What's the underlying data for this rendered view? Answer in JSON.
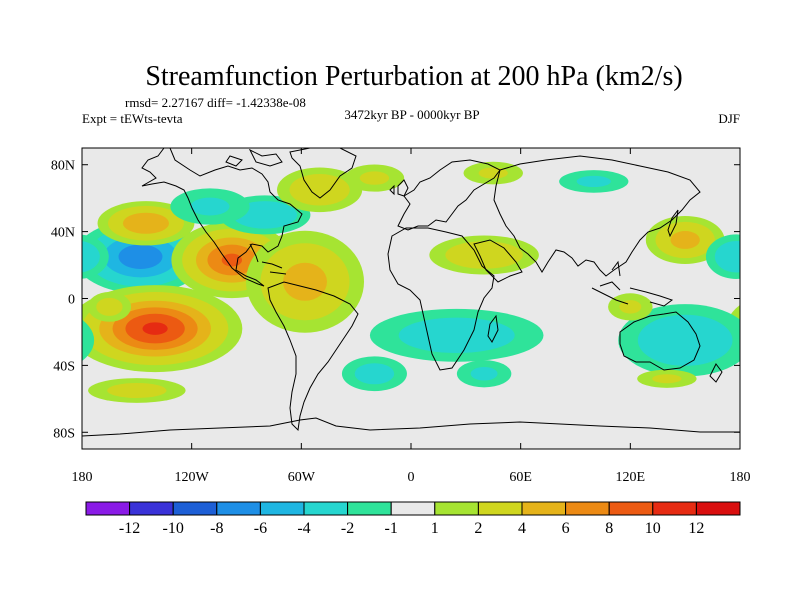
{
  "chart_data": {
    "type": "heatmap",
    "title": "Streamfunction Perturbation at 200 hPa (km2/s)",
    "stats_text": "rmsd= 2.27167 diff= -1.42338e-08",
    "experiment_text": "Expt = tEWts-tevta",
    "period_text": "3472kyr BP - 0000kyr BP",
    "season_text": "DJF",
    "map": "world coastlines, cylindrical equidistant",
    "xlim": [
      -180,
      180
    ],
    "ylim": [
      -90,
      90
    ],
    "x_ticks": [
      {
        "value": -180,
        "label": "180"
      },
      {
        "value": -120,
        "label": "120W"
      },
      {
        "value": -60,
        "label": "60W"
      },
      {
        "value": 0,
        "label": "0"
      },
      {
        "value": 60,
        "label": "60E"
      },
      {
        "value": 120,
        "label": "120E"
      },
      {
        "value": 180,
        "label": "180"
      }
    ],
    "y_ticks": [
      {
        "value": 80,
        "label": "80N"
      },
      {
        "value": 40,
        "label": "40N"
      },
      {
        "value": 0,
        "label": "0"
      },
      {
        "value": -40,
        "label": "40S"
      },
      {
        "value": -80,
        "label": "80S"
      }
    ],
    "colorbar": {
      "levels": [
        -12,
        -10,
        -8,
        -6,
        -4,
        -2,
        -1,
        1,
        2,
        4,
        6,
        8,
        10,
        12
      ],
      "labels": [
        "-12",
        "-10",
        "-8",
        "-6",
        "-4",
        "-2",
        "-1",
        "1",
        "2",
        "4",
        "6",
        "8",
        "10",
        "12"
      ],
      "colors": [
        "#8a1be6",
        "#3a32d8",
        "#1d5fd6",
        "#1e8fe6",
        "#1fb6e2",
        "#26d6cf",
        "#2fe39a",
        "#e9e9e9",
        "#a6e432",
        "#cfd61f",
        "#e5b31a",
        "#ec8a14",
        "#ec5a12",
        "#e62b12",
        "#d90e0e"
      ]
    },
    "anomalies": [
      {
        "lon": -148,
        "lat": 25,
        "value": -7.5,
        "sx": 18,
        "sy": 11
      },
      {
        "lon": -145,
        "lat": 45,
        "value": 6.0,
        "sx": 14,
        "sy": 7
      },
      {
        "lon": -140,
        "lat": -18,
        "value": 10.5,
        "sx": 22,
        "sy": 12
      },
      {
        "lon": -98,
        "lat": 23,
        "value": 8.5,
        "sx": 16,
        "sy": 11
      },
      {
        "lon": -58,
        "lat": 10,
        "value": 5.0,
        "sx": 18,
        "sy": 17
      },
      {
        "lon": -80,
        "lat": 50,
        "value": -4.0,
        "sx": 15,
        "sy": 7
      },
      {
        "lon": -110,
        "lat": 55,
        "value": -2.5,
        "sx": 16,
        "sy": 8
      },
      {
        "lon": -50,
        "lat": 65,
        "value": 4.0,
        "sx": 14,
        "sy": 8
      },
      {
        "lon": -20,
        "lat": 72,
        "value": 2.5,
        "sx": 12,
        "sy": 6
      },
      {
        "lon": 40,
        "lat": 26,
        "value": 4.0,
        "sx": 18,
        "sy": 7
      },
      {
        "lon": 45,
        "lat": 75,
        "value": 2.5,
        "sx": 12,
        "sy": 5
      },
      {
        "lon": 25,
        "lat": -22,
        "value": -3.5,
        "sx": 30,
        "sy": 10
      },
      {
        "lon": -150,
        "lat": -55,
        "value": 3.0,
        "sx": 18,
        "sy": 5
      },
      {
        "lon": -20,
        "lat": -45,
        "value": -3.0,
        "sx": 12,
        "sy": 7
      },
      {
        "lon": 40,
        "lat": -45,
        "value": -2.5,
        "sx": 11,
        "sy": 6
      },
      {
        "lon": 150,
        "lat": 35,
        "value": 5.0,
        "sx": 12,
        "sy": 8
      },
      {
        "lon": 178,
        "lat": 25,
        "value": -4.0,
        "sx": 10,
        "sy": 8
      },
      {
        "lon": 150,
        "lat": -25,
        "value": -4.0,
        "sx": 22,
        "sy": 13
      },
      {
        "lon": 120,
        "lat": -5,
        "value": 2.5,
        "sx": 9,
        "sy": 6
      },
      {
        "lon": 100,
        "lat": 70,
        "value": -2.5,
        "sx": 14,
        "sy": 5
      },
      {
        "lon": 140,
        "lat": -48,
        "value": 2.5,
        "sx": 12,
        "sy": 4
      },
      {
        "lon": -165,
        "lat": -5,
        "value": 3.0,
        "sx": 8,
        "sy": 6
      }
    ]
  }
}
